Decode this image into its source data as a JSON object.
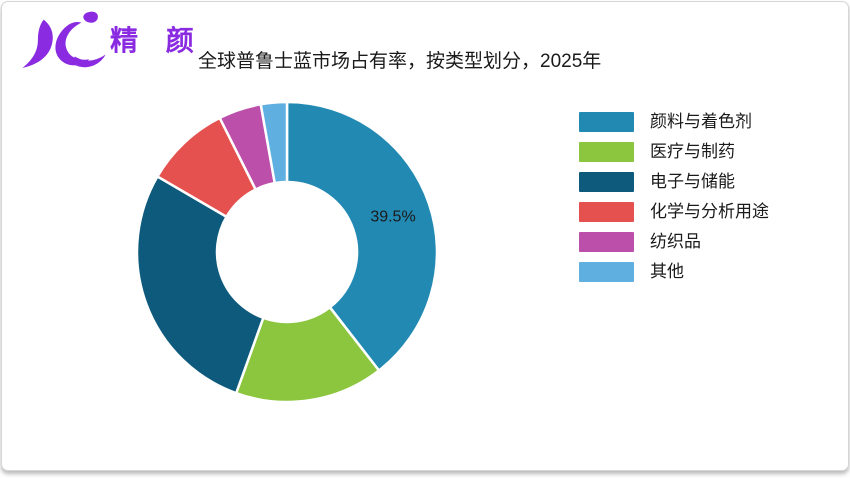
{
  "header": {
    "logo_text": "精 颜",
    "logo_color": "#8a2be2",
    "title": "全球普鲁士蓝市场占有率，按类型划分，2025年"
  },
  "chart_data": {
    "type": "pie",
    "subtype": "donut",
    "title": "全球普鲁士蓝市场占有率，按类型划分，2025年",
    "start_angle_deg": 0,
    "direction": "clockwise",
    "categories": [
      "颜料与着色剂",
      "医疗与制药",
      "电子与储能",
      "化学与分析用途",
      "纺织品",
      "其他"
    ],
    "values": [
      39.5,
      16.0,
      27.9,
      9.2,
      4.6,
      2.8
    ],
    "colors": [
      "#2289b2",
      "#8cc63f",
      "#0e5a7d",
      "#e5514f",
      "#bb4fa9",
      "#5fafe0"
    ],
    "visible_label": {
      "segment_index": 0,
      "text": "39.5%"
    },
    "legend_position": "right",
    "background": "#ffffff"
  }
}
